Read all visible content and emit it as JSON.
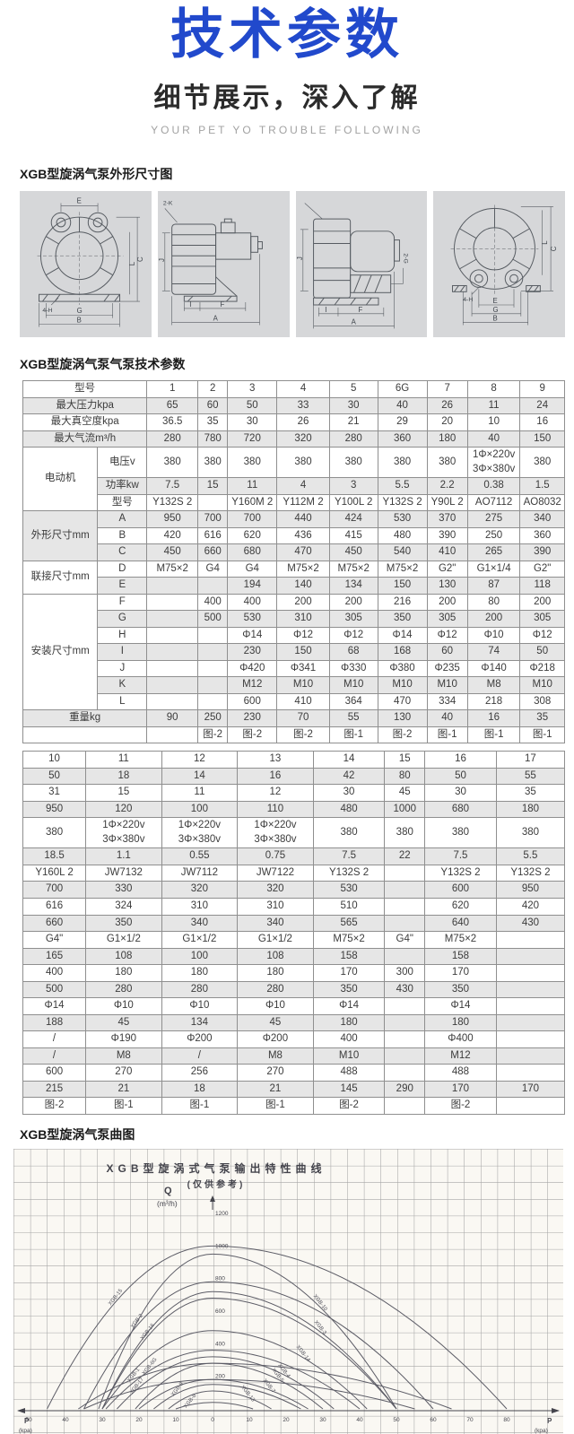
{
  "colors": {
    "accent": "#2149cc",
    "table_border": "#8f8f8f",
    "row_shade": "#e6e6e6",
    "panel_bg": "#d6d7d9",
    "chart_bg": "#faf8f3"
  },
  "header": {
    "title": "技术参数",
    "subtitle": "细节展示，深入了解",
    "tagline": "YOUR PET YO TROUBLE FOLLOWING"
  },
  "sections": {
    "dimensions_heading": "XGB型旋涡气泵外形尺寸图",
    "specs_heading": "XGB型旋涡气泵气泵技术参数",
    "curve_heading": "XGB型旋涡气泵曲图"
  },
  "drawings": [
    {
      "view": "front-view",
      "labels": [
        "E",
        "C",
        "L",
        "4-H",
        "G",
        "B"
      ]
    },
    {
      "view": "side-view-motor-right",
      "labels": [
        "2-K",
        "J",
        "I",
        "F",
        "A"
      ]
    },
    {
      "view": "side-view-motor-left",
      "labels": [
        "J",
        "2-G",
        "I",
        "F",
        "A"
      ]
    },
    {
      "view": "front-view-2",
      "labels": [
        "L",
        "C",
        "4-H",
        "E",
        "G",
        "B"
      ]
    }
  ],
  "spec_table": {
    "rows": [
      {
        "shaded": false,
        "cells": [
          {
            "t": "型号",
            "cs": 2
          },
          "1",
          "2",
          "3",
          "4",
          "5",
          "6G",
          "7",
          "8",
          "9"
        ]
      },
      {
        "shaded": true,
        "cells": [
          {
            "t": "最大压力kpa",
            "cs": 2
          },
          "65",
          "60",
          "50",
          "33",
          "30",
          "40",
          "26",
          "11",
          "24"
        ]
      },
      {
        "shaded": false,
        "cells": [
          {
            "t": "最大真空度kpa",
            "cs": 2
          },
          "36.5",
          "35",
          "30",
          "26",
          "21",
          "29",
          "20",
          "10",
          "16"
        ]
      },
      {
        "shaded": true,
        "cells": [
          {
            "t": "最大气流m³/h",
            "cs": 2
          },
          "280",
          "780",
          "720",
          "320",
          "280",
          "360",
          "180",
          "40",
          "150"
        ]
      },
      {
        "shaded": false,
        "cells": [
          {
            "t": "电动机",
            "rs": 3,
            "grp": true
          },
          {
            "t": "电压v"
          },
          "380",
          "380",
          "380",
          "380",
          "380",
          "380",
          "380",
          "1Φ×220v\n3Φ×380v",
          "380"
        ]
      },
      {
        "shaded": true,
        "cells": [
          {
            "t": "功率kw"
          },
          "7.5",
          "15",
          "11",
          "4",
          "3",
          "5.5",
          "2.2",
          "0.38",
          "1.5"
        ]
      },
      {
        "shaded": false,
        "cells": [
          {
            "t": "型号"
          },
          "Y132S 2",
          "",
          "Y160M 2",
          "Y112M 2",
          "Y100L 2",
          "Y132S 2",
          "Y90L 2",
          "AO7112",
          "AO8032"
        ]
      },
      {
        "shaded": true,
        "cells": [
          {
            "t": "外形尺寸mm",
            "rs": 3,
            "grp": true
          },
          {
            "t": "A"
          },
          "950",
          "700",
          "700",
          "440",
          "424",
          "530",
          "370",
          "275",
          "340"
        ]
      },
      {
        "shaded": false,
        "cells": [
          {
            "t": "B"
          },
          "420",
          "616",
          "620",
          "436",
          "415",
          "480",
          "390",
          "250",
          "360"
        ]
      },
      {
        "shaded": true,
        "cells": [
          {
            "t": "C"
          },
          "450",
          "660",
          "680",
          "470",
          "450",
          "540",
          "410",
          "265",
          "390"
        ]
      },
      {
        "shaded": false,
        "cells": [
          {
            "t": "联接尺寸mm",
            "rs": 2,
            "grp": true
          },
          {
            "t": "D"
          },
          "M75×2",
          "G4",
          "G4",
          "M75×2",
          "M75×2",
          "M75×2",
          "G2\"",
          "G1×1/4",
          "G2\""
        ]
      },
      {
        "shaded": true,
        "cells": [
          {
            "t": "E"
          },
          "",
          "",
          "194",
          "140",
          "134",
          "150",
          "130",
          "87",
          "118"
        ]
      },
      {
        "shaded": false,
        "cells": [
          {
            "t": "安装尺寸mm",
            "rs": 7,
            "grp": true
          },
          {
            "t": "F"
          },
          "",
          "400",
          "400",
          "200",
          "200",
          "216",
          "200",
          "80",
          "200"
        ]
      },
      {
        "shaded": true,
        "cells": [
          {
            "t": "G"
          },
          "",
          "500",
          "530",
          "310",
          "305",
          "350",
          "305",
          "200",
          "305"
        ]
      },
      {
        "shaded": false,
        "cells": [
          {
            "t": "H"
          },
          "",
          "",
          "Φ14",
          "Φ12",
          "Φ12",
          "Φ14",
          "Φ12",
          "Φ10",
          "Φ12"
        ]
      },
      {
        "shaded": true,
        "cells": [
          {
            "t": "I"
          },
          "",
          "",
          "230",
          "150",
          "68",
          "168",
          "60",
          "74",
          "50"
        ]
      },
      {
        "shaded": false,
        "cells": [
          {
            "t": "J"
          },
          "",
          "",
          "Φ420",
          "Φ341",
          "Φ330",
          "Φ380",
          "Φ235",
          "Φ140",
          "Φ218"
        ]
      },
      {
        "shaded": true,
        "cells": [
          {
            "t": "K"
          },
          "",
          "",
          "M12",
          "M10",
          "M10",
          "M10",
          "M10",
          "M8",
          "M10"
        ]
      },
      {
        "shaded": false,
        "cells": [
          {
            "t": "L"
          },
          "",
          "",
          "600",
          "410",
          "364",
          "470",
          "334",
          "218",
          "308"
        ]
      },
      {
        "shaded": true,
        "cells": [
          {
            "t": "重量kg",
            "cs": 2
          },
          "90",
          "250",
          "230",
          "70",
          "55",
          "130",
          "40",
          "16",
          "35"
        ]
      },
      {
        "shaded": false,
        "cells": [
          {
            "t": "",
            "cs": 2
          },
          "",
          "图-2",
          "图-2",
          "图-2",
          "图-1",
          "图-2",
          "图-1",
          "图-1",
          "图-1"
        ]
      }
    ]
  },
  "spec_table2": {
    "rows": [
      {
        "shaded": false,
        "cells": [
          "10",
          "11",
          "12",
          "13",
          "14",
          "15",
          "16",
          "17"
        ]
      },
      {
        "shaded": true,
        "cells": [
          "50",
          "18",
          "14",
          "16",
          "42",
          "80",
          "50",
          "55"
        ]
      },
      {
        "shaded": false,
        "cells": [
          "31",
          "15",
          "11",
          "12",
          "30",
          "45",
          "30",
          "35"
        ]
      },
      {
        "shaded": true,
        "cells": [
          "950",
          "120",
          "100",
          "110",
          "480",
          "1000",
          "680",
          "180"
        ]
      },
      {
        "shaded": false,
        "cells": [
          "380",
          "1Φ×220v\n3Φ×380v",
          "1Φ×220v\n3Φ×380v",
          "1Φ×220v\n3Φ×380v",
          "380",
          "380",
          "380",
          "380"
        ]
      },
      {
        "shaded": true,
        "cells": [
          "18.5",
          "1.1",
          "0.55",
          "0.75",
          "7.5",
          "22",
          "7.5",
          "5.5"
        ]
      },
      {
        "shaded": false,
        "cells": [
          "Y160L 2",
          "JW7132",
          "JW7112",
          "JW7122",
          "Y132S 2",
          "",
          "Y132S 2",
          "Y132S 2"
        ]
      },
      {
        "shaded": true,
        "cells": [
          "700",
          "330",
          "320",
          "320",
          "530",
          "",
          "600",
          "950"
        ]
      },
      {
        "shaded": false,
        "cells": [
          "616",
          "324",
          "310",
          "310",
          "510",
          "",
          "620",
          "420"
        ]
      },
      {
        "shaded": true,
        "cells": [
          "660",
          "350",
          "340",
          "340",
          "565",
          "",
          "640",
          "430"
        ]
      },
      {
        "shaded": false,
        "cells": [
          "G4\"",
          "G1×1/2",
          "G1×1/2",
          "G1×1/2",
          "M75×2",
          "G4\"",
          "M75×2",
          ""
        ]
      },
      {
        "shaded": true,
        "cells": [
          "165",
          "108",
          "100",
          "108",
          "158",
          "",
          "158",
          ""
        ]
      },
      {
        "shaded": false,
        "cells": [
          "400",
          "180",
          "180",
          "180",
          "170",
          "300",
          "170",
          ""
        ]
      },
      {
        "shaded": true,
        "cells": [
          "500",
          "280",
          "280",
          "280",
          "350",
          "430",
          "350",
          ""
        ]
      },
      {
        "shaded": false,
        "cells": [
          "Φ14",
          "Φ10",
          "Φ10",
          "Φ10",
          "Φ14",
          "",
          "Φ14",
          ""
        ]
      },
      {
        "shaded": true,
        "cells": [
          "188",
          "45",
          "134",
          "45",
          "180",
          "",
          "180",
          ""
        ]
      },
      {
        "shaded": false,
        "cells": [
          "/",
          "Φ190",
          "Φ200",
          "Φ200",
          "400",
          "",
          "Φ400",
          ""
        ]
      },
      {
        "shaded": true,
        "cells": [
          "/",
          "M8",
          "/",
          "M8",
          "M10",
          "",
          "M12",
          ""
        ]
      },
      {
        "shaded": false,
        "cells": [
          "600",
          "270",
          "256",
          "270",
          "488",
          "",
          "488",
          ""
        ]
      },
      {
        "shaded": true,
        "cells": [
          "215",
          "21",
          "18",
          "21",
          "145",
          "290",
          "170",
          "170"
        ]
      },
      {
        "shaded": false,
        "cells": [
          "图-2",
          "图-1",
          "图-1",
          "图-1",
          "图-2",
          "",
          "图-2",
          ""
        ]
      }
    ]
  },
  "chart_data": {
    "type": "line",
    "title": "XGB型旋涡式气泵输出特性曲线",
    "subtitle": "(仅供参考)",
    "y_axis": {
      "label": "Q",
      "unit": "(m³/h)",
      "ticks": [
        200,
        400,
        600,
        800,
        1000,
        1200
      ],
      "max": 1200
    },
    "x_axis": {
      "label_left": "P",
      "label_right": "P",
      "unit": "(kpa)",
      "left_ticks": [
        50,
        40,
        30,
        20,
        10
      ],
      "center": "0",
      "right_ticks": [
        10,
        20,
        30,
        40,
        50,
        60,
        70,
        80
      ]
    },
    "grid": true,
    "legend_position": "on-curve",
    "curves": [
      {
        "label": "XGB-15",
        "q_max": 1000,
        "vacuum_kpa": 45,
        "pressure_kpa": 80
      },
      {
        "label": "XGB-10",
        "q_max": 950,
        "vacuum_kpa": 31,
        "pressure_kpa": 50
      },
      {
        "label": "XGB-2",
        "q_max": 780,
        "vacuum_kpa": 35,
        "pressure_kpa": 60
      },
      {
        "label": "XGB-3",
        "q_max": 720,
        "vacuum_kpa": 30,
        "pressure_kpa": 50
      },
      {
        "label": "XGB-16",
        "q_max": 680,
        "vacuum_kpa": 30,
        "pressure_kpa": 50
      },
      {
        "label": "XGB-14",
        "q_max": 480,
        "vacuum_kpa": 30,
        "pressure_kpa": 42
      },
      {
        "label": "XGB-6G",
        "q_max": 360,
        "vacuum_kpa": 29,
        "pressure_kpa": 40
      },
      {
        "label": "XGB-4",
        "q_max": 320,
        "vacuum_kpa": 26,
        "pressure_kpa": 33
      },
      {
        "label": "XGB-1",
        "q_max": 280,
        "vacuum_kpa": 36.5,
        "pressure_kpa": 65
      },
      {
        "label": "XGB-5",
        "q_max": 280,
        "vacuum_kpa": 21,
        "pressure_kpa": 30
      },
      {
        "label": "XGB-17",
        "q_max": 180,
        "vacuum_kpa": 35,
        "pressure_kpa": 55
      },
      {
        "label": "XGB-7",
        "q_max": 180,
        "vacuum_kpa": 20,
        "pressure_kpa": 26
      },
      {
        "label": "XGB-9",
        "q_max": 150,
        "vacuum_kpa": 16,
        "pressure_kpa": 24
      },
      {
        "label": "XGB-13",
        "q_max": 110,
        "vacuum_kpa": 12,
        "pressure_kpa": 16
      },
      {
        "label": "XGB-8",
        "q_max": 40,
        "vacuum_kpa": 10,
        "pressure_kpa": 11
      }
    ]
  }
}
